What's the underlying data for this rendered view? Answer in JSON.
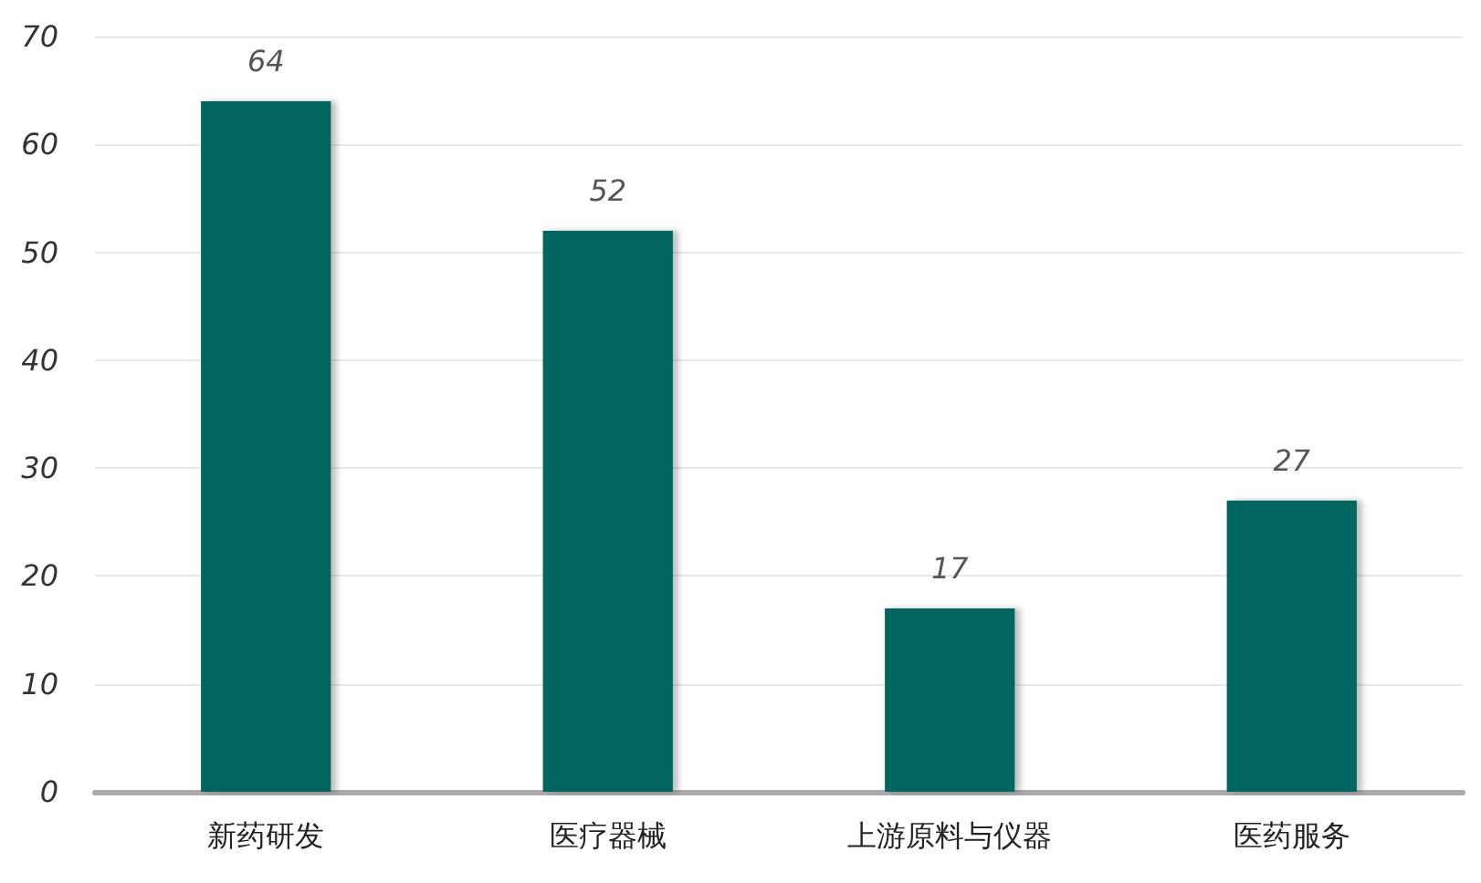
{
  "chart_data": {
    "type": "bar",
    "categories": [
      "新药研发",
      "医疗器械",
      "上游原料与仪器",
      "医药服务"
    ],
    "values": [
      64,
      52,
      17,
      27
    ],
    "color": "#00665e",
    "ylim": [
      0,
      70
    ],
    "yticks": [
      0,
      10,
      20,
      30,
      40,
      50,
      60,
      70
    ],
    "grid": true,
    "data_labels": true
  }
}
